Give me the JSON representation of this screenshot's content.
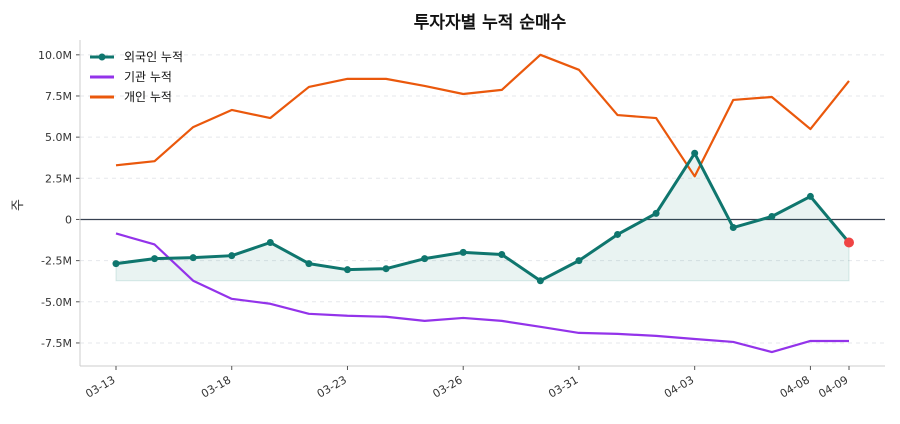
{
  "chart_data": {
    "type": "line",
    "title": "투자자별 누적 순매수",
    "ylabel": "주",
    "xlabel": "",
    "ylim": [
      -8.9,
      10.9
    ],
    "yticks": [
      -7.5,
      -5.0,
      -2.5,
      0,
      2.5,
      5.0,
      7.5,
      10.0
    ],
    "ytick_labels": [
      "-7.5M",
      "-5.0M",
      "-2.5M",
      "0",
      "2.5M",
      "5.0M",
      "7.5M",
      "10.0M"
    ],
    "xtick_index": [
      0,
      3,
      6,
      9,
      12,
      15,
      18,
      19
    ],
    "xtick_labels": [
      "03-13",
      "03-18",
      "03-23",
      "03-26",
      "03-31",
      "04-03",
      "04-08",
      "04-09"
    ],
    "grid": "y-dashed",
    "legend": "top-left",
    "unit": "M shares",
    "series": [
      {
        "name": "외국인 누적",
        "color": "#0f766e",
        "markers": true,
        "fill": true,
        "values": [
          -2.68,
          -2.38,
          -2.32,
          -2.2,
          -1.4,
          -2.68,
          -3.05,
          -2.99,
          -2.38,
          -2.0,
          -2.13,
          -3.72,
          -2.5,
          -0.91,
          0.37,
          4.02,
          -0.49,
          0.18,
          1.4,
          -1.4
        ]
      },
      {
        "name": "기관 누적",
        "color": "#9333ea",
        "markers": false,
        "values": [
          -0.85,
          -1.52,
          -3.72,
          -4.82,
          -5.12,
          -5.73,
          -5.85,
          -5.91,
          -6.16,
          -5.98,
          -6.16,
          -6.52,
          -6.89,
          -6.95,
          -7.07,
          -7.26,
          -7.44,
          -8.05,
          -7.38,
          -7.38
        ]
      },
      {
        "name": "개인 누적",
        "color": "#ea580c",
        "markers": false,
        "values": [
          3.29,
          3.54,
          5.61,
          6.65,
          6.16,
          8.05,
          8.54,
          8.54,
          8.11,
          7.62,
          7.87,
          10.0,
          9.09,
          6.34,
          6.16,
          2.62,
          7.26,
          7.44,
          5.49,
          8.41
        ]
      }
    ],
    "highlight_last_color": "#ef4444"
  }
}
